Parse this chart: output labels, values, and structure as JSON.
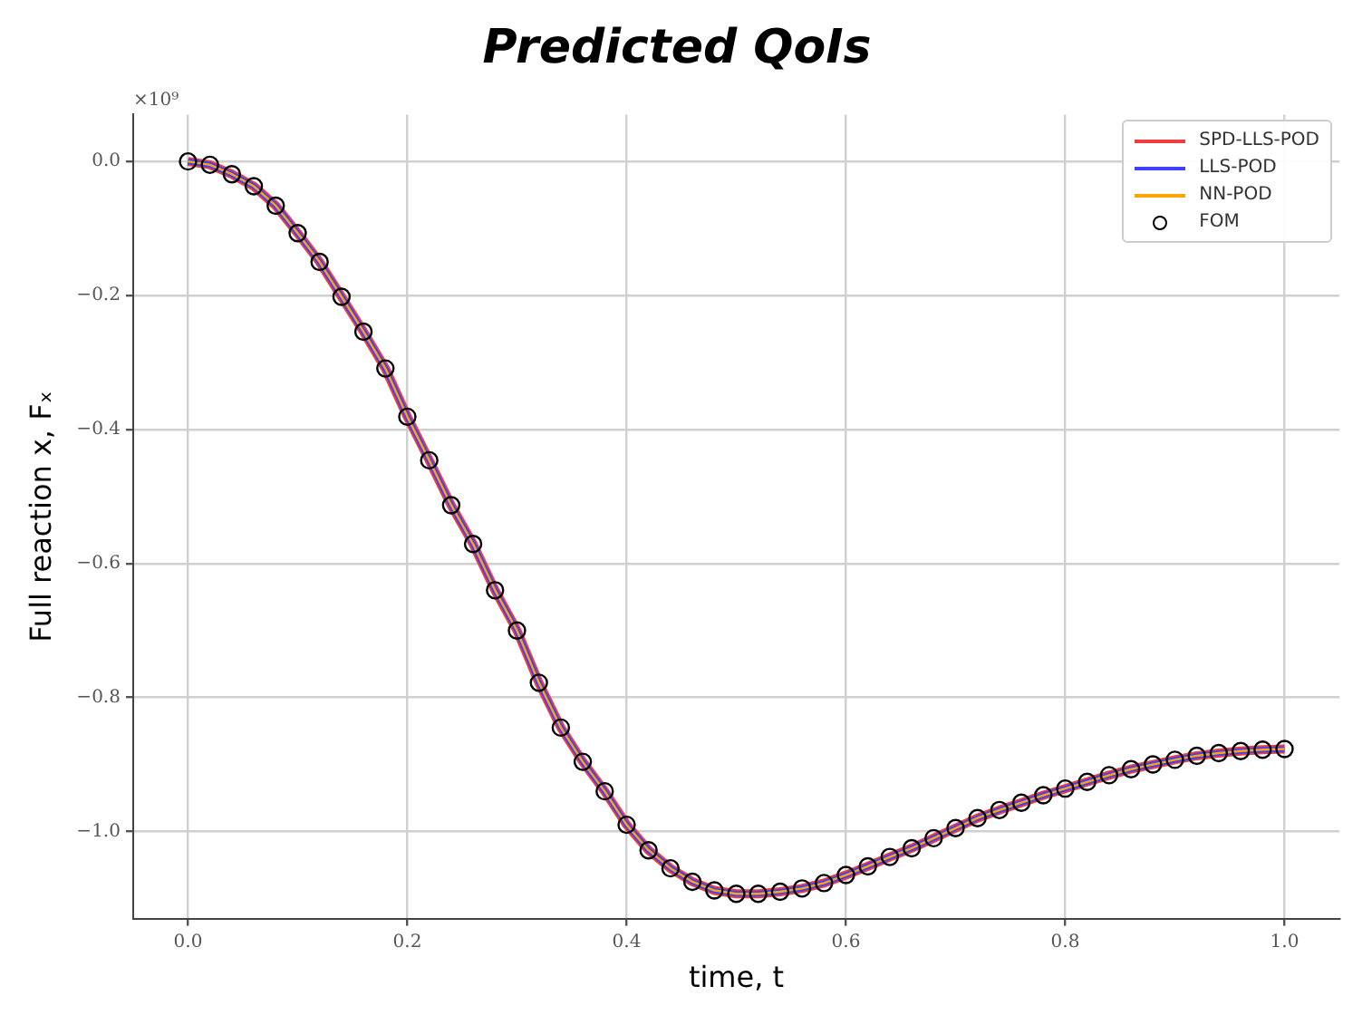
{
  "chart_data": {
    "type": "line",
    "title": "Predicted QoIs",
    "xlabel": "time, t",
    "ylabel": "Full reaction x, Fₓ",
    "annotations": [
      "×10⁹"
    ],
    "x": [
      0,
      0.02,
      0.04,
      0.06,
      0.08,
      0.1,
      0.12,
      0.14,
      0.16,
      0.18,
      0.2,
      0.22,
      0.24,
      0.26,
      0.28,
      0.3,
      0.32,
      0.34,
      0.36,
      0.38,
      0.4,
      0.42,
      0.44,
      0.46,
      0.48,
      0.5,
      0.52,
      0.54,
      0.56,
      0.58,
      0.6,
      0.62,
      0.64,
      0.66,
      0.68,
      0.7,
      0.72,
      0.74,
      0.76,
      0.78,
      0.8,
      0.82,
      0.84,
      0.86,
      0.88,
      0.9,
      0.92,
      0.94,
      0.96,
      0.98,
      1.0
    ],
    "series": [
      {
        "name": "SPD-LLS-POD",
        "color": "#f03c3c",
        "values": [
          0,
          -0.005,
          -0.019,
          -0.037,
          -0.066,
          -0.107,
          -0.15,
          -0.202,
          -0.254,
          -0.309,
          -0.381,
          -0.446,
          -0.513,
          -0.571,
          -0.64,
          -0.7,
          -0.778,
          -0.845,
          -0.896,
          -0.94,
          -0.99,
          -1.028,
          -1.055,
          -1.075,
          -1.088,
          -1.093,
          -1.093,
          -1.09,
          -1.085,
          -1.077,
          -1.065,
          -1.052,
          -1.038,
          -1.025,
          -1.01,
          -0.995,
          -0.98,
          -0.968,
          -0.957,
          -0.946,
          -0.936,
          -0.926,
          -0.916,
          -0.907,
          -0.9,
          -0.893,
          -0.887,
          -0.883,
          -0.88,
          -0.878,
          -0.877
        ]
      },
      {
        "name": "LLS-POD",
        "color": "#4040ff",
        "values": [
          0,
          -0.005,
          -0.019,
          -0.037,
          -0.066,
          -0.107,
          -0.15,
          -0.202,
          -0.254,
          -0.309,
          -0.381,
          -0.446,
          -0.513,
          -0.571,
          -0.64,
          -0.7,
          -0.778,
          -0.845,
          -0.896,
          -0.94,
          -0.99,
          -1.028,
          -1.055,
          -1.075,
          -1.088,
          -1.093,
          -1.093,
          -1.09,
          -1.085,
          -1.077,
          -1.065,
          -1.052,
          -1.038,
          -1.025,
          -1.01,
          -0.995,
          -0.98,
          -0.968,
          -0.957,
          -0.946,
          -0.936,
          -0.926,
          -0.916,
          -0.907,
          -0.9,
          -0.893,
          -0.887,
          -0.883,
          -0.88,
          -0.878,
          -0.877
        ]
      },
      {
        "name": "NN-POD",
        "color": "#ffa500",
        "values": [
          0,
          -0.005,
          -0.019,
          -0.037,
          -0.066,
          -0.107,
          -0.15,
          -0.202,
          -0.254,
          -0.309,
          -0.381,
          -0.446,
          -0.513,
          -0.571,
          -0.64,
          -0.7,
          -0.778,
          -0.845,
          -0.896,
          -0.94,
          -0.99,
          -1.028,
          -1.055,
          -1.075,
          -1.088,
          -1.093,
          -1.093,
          -1.09,
          -1.085,
          -1.077,
          -1.065,
          -1.052,
          -1.038,
          -1.025,
          -1.01,
          -0.995,
          -0.98,
          -0.968,
          -0.957,
          -0.946,
          -0.936,
          -0.926,
          -0.916,
          -0.907,
          -0.9,
          -0.893,
          -0.887,
          -0.883,
          -0.88,
          -0.878,
          -0.877
        ]
      },
      {
        "name": "FOM",
        "type": "scatter",
        "marker": "circle",
        "color": "#000000",
        "values": [
          0,
          -0.005,
          -0.019,
          -0.037,
          -0.066,
          -0.107,
          -0.15,
          -0.202,
          -0.254,
          -0.309,
          -0.381,
          -0.446,
          -0.513,
          -0.571,
          -0.64,
          -0.7,
          -0.778,
          -0.845,
          -0.896,
          -0.94,
          -0.99,
          -1.028,
          -1.055,
          -1.075,
          -1.088,
          -1.093,
          -1.093,
          -1.09,
          -1.085,
          -1.077,
          -1.065,
          -1.052,
          -1.038,
          -1.025,
          -1.01,
          -0.995,
          -0.98,
          -0.968,
          -0.957,
          -0.946,
          -0.936,
          -0.926,
          -0.916,
          -0.907,
          -0.9,
          -0.893,
          -0.887,
          -0.883,
          -0.88,
          -0.878,
          -0.877
        ]
      }
    ],
    "xlim": [
      -0.05,
      1.05
    ],
    "ylim": [
      -1.13,
      0.07
    ],
    "xticks": [
      {
        "value": 0,
        "label": "0.0"
      },
      {
        "value": 0.2,
        "label": "0.2"
      },
      {
        "value": 0.4,
        "label": "0.4"
      },
      {
        "value": 0.6,
        "label": "0.6"
      },
      {
        "value": 0.8,
        "label": "0.8"
      },
      {
        "value": 1,
        "label": "1.0"
      }
    ],
    "yticks": [
      {
        "value": 0,
        "label": "0.0"
      },
      {
        "value": -0.2,
        "label": "−0.2"
      },
      {
        "value": -0.4,
        "label": "−0.4"
      },
      {
        "value": -0.6,
        "label": "−0.6"
      },
      {
        "value": -0.8,
        "label": "−0.8"
      },
      {
        "value": -1,
        "label": "−1.0"
      }
    ],
    "grid": true,
    "legend": "top right"
  }
}
